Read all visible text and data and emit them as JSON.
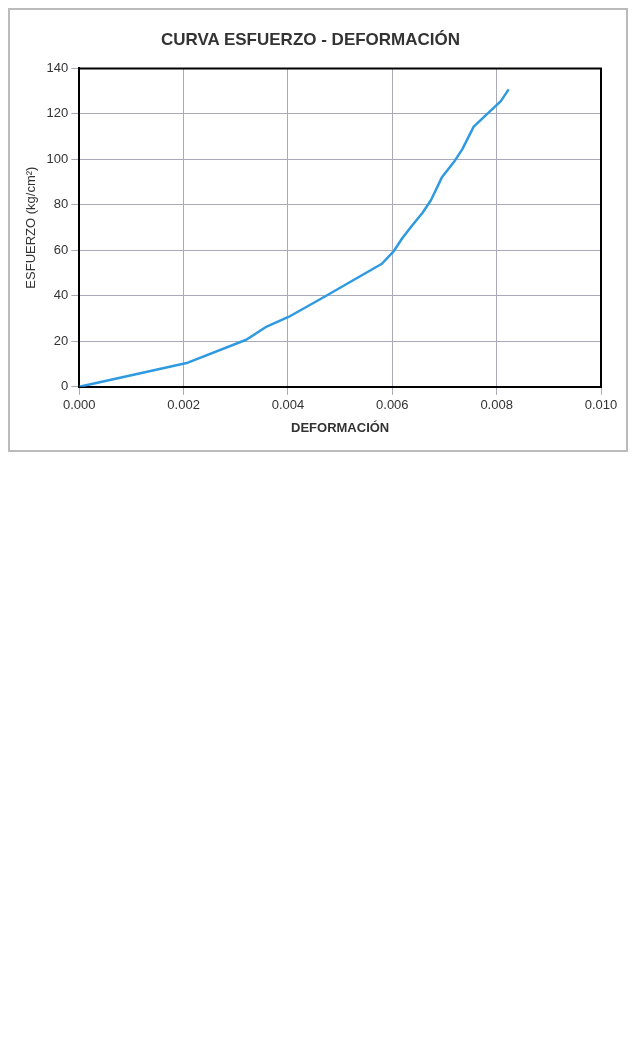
{
  "chart_data": {
    "type": "line",
    "title": "CURVA ESFUERZO - DEFORMACIÓN",
    "xlabel": "DEFORMACIÓN",
    "ylabel": "ESFUERZO (kg/cm²)",
    "x": [
      0,
      0.00208,
      0.0032,
      0.00357,
      0.00401,
      0.0047,
      0.0058,
      0.00603,
      0.00619,
      0.00638,
      0.00658,
      0.00674,
      0.00695,
      0.00718,
      0.00734,
      0.00756,
      0.00782,
      0.00808,
      0.00823
    ],
    "series": [
      {
        "color": "#2f9ae0",
        "values": [
          0,
          10.6,
          20.7,
          26.2,
          30.7,
          39.6,
          54.1,
          59.7,
          65.3,
          70.9,
          76.5,
          82.0,
          92.1,
          98.8,
          104.4,
          114.4,
          120.0,
          125.6,
          130.8
        ]
      }
    ],
    "xlim": [
      0,
      0.01
    ],
    "xticks": [
      {
        "value": 0,
        "label": "0.000"
      },
      {
        "value": 0.002,
        "label": "0.002"
      },
      {
        "value": 0.004,
        "label": "0.004"
      },
      {
        "value": 0.006,
        "label": "0.006"
      },
      {
        "value": 0.008,
        "label": "0.008"
      },
      {
        "value": 0.01,
        "label": "0.010"
      }
    ],
    "ylim": [
      0,
      140
    ],
    "yticks": [
      0,
      20,
      40,
      60,
      80,
      100,
      120,
      140
    ],
    "grid": true,
    "legend": false,
    "marker": "none",
    "line_style": "solid"
  }
}
